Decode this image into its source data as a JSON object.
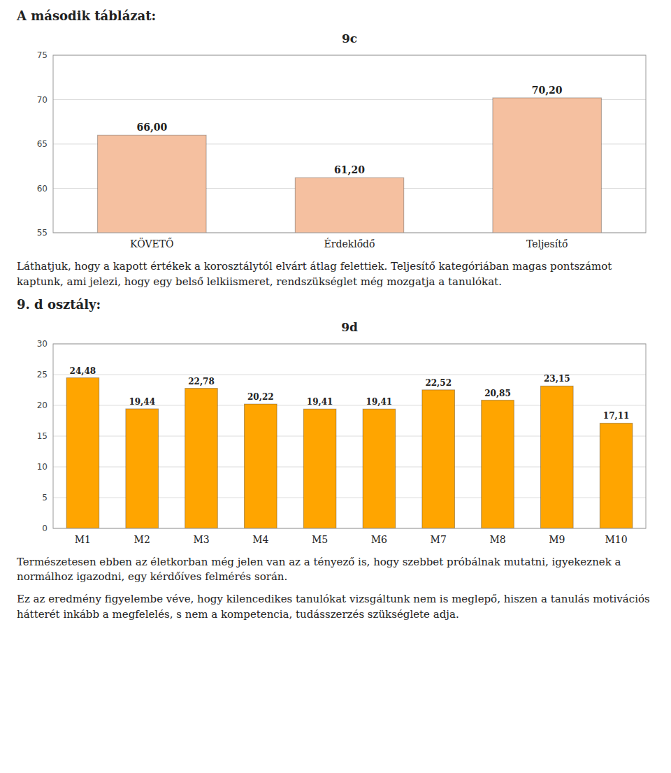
{
  "chart_data": [
    {
      "type": "bar",
      "title": "9c",
      "categories": [
        "KÖVETŐ",
        "Érdeklődő",
        "Teljesítő"
      ],
      "values": [
        66.0,
        61.2,
        70.2
      ],
      "value_labels": [
        "66,00",
        "61,20",
        "70,20"
      ],
      "color": "#F5C0A0",
      "ylim": [
        55,
        75
      ],
      "yticks": [
        55,
        60,
        65,
        70,
        75
      ],
      "grid": true,
      "data_labels": true
    },
    {
      "type": "bar",
      "title": "9d",
      "categories": [
        "M1",
        "M2",
        "M3",
        "M4",
        "M5",
        "M6",
        "M7",
        "M8",
        "M9",
        "M10"
      ],
      "values": [
        24.48,
        19.44,
        22.78,
        20.22,
        19.41,
        19.41,
        22.52,
        20.85,
        23.15,
        17.11
      ],
      "value_labels": [
        "24,48",
        "19,44",
        "22,78",
        "20,22",
        "19,41",
        "19,41",
        "22,52",
        "20,85",
        "23,15",
        "17,11"
      ],
      "color": "#FFA500",
      "ylim": [
        0,
        30
      ],
      "yticks": [
        0,
        5,
        10,
        15,
        20,
        25,
        30
      ],
      "grid": true,
      "data_labels": true
    }
  ],
  "headings": [
    "A második táblázat:",
    "9. d osztály:"
  ],
  "paragraphs": [
    "Láthatjuk, hogy a kapott értékek a korosztálytól elvárt átlag felettiek. Teljesítő kategóriában magas pontszámot kaptunk, ami jelezi, hogy egy belső lelkiismeret, rendszükséglet még mozgatja a tanulókat.",
    "Természetesen ebben az életkorban még jelen van az a tényező is, hogy szebbet próbálnak mutatni, igyekeznek a normálhoz igazodni, egy kérdőíves felmérés során.",
    "Ez az eredmény figyelembe véve, hogy kilencedikes tanulókat vizsgáltunk nem is meglepő, hiszen a tanulás motivációs hátterét inkább a megfelelés, s nem a kompetencia, tudásszerzés szükséglete adja."
  ]
}
